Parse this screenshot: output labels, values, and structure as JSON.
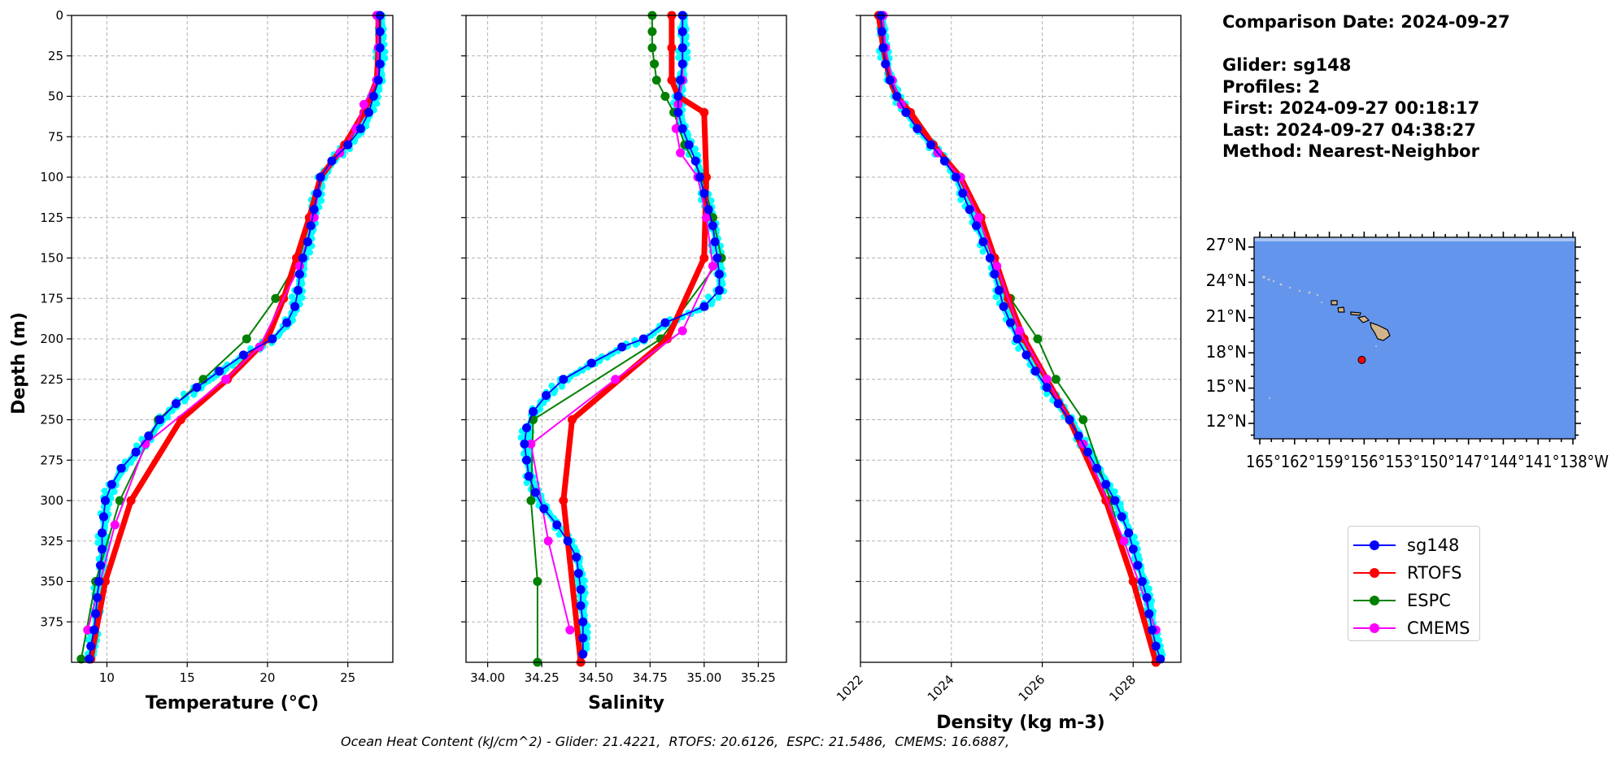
{
  "chart_data": [
    {
      "type": "line",
      "xlabel": "Temperature (°C)",
      "ylabel": "Depth (m)",
      "xlim": [
        7.8,
        27.8
      ],
      "ylim": [
        400,
        0
      ],
      "xticks": [
        "10",
        "15",
        "20",
        "25"
      ],
      "yticks": [
        "0",
        "25",
        "50",
        "75",
        "100",
        "125",
        "150",
        "175",
        "200",
        "225",
        "250",
        "275",
        "300",
        "325",
        "350",
        "375"
      ],
      "grid": true,
      "series": [
        {
          "name": "sg148",
          "depth": [
            0,
            10,
            20,
            30,
            40,
            50,
            60,
            70,
            80,
            90,
            100,
            110,
            120,
            130,
            140,
            150,
            160,
            170,
            180,
            190,
            200,
            210,
            220,
            230,
            240,
            250,
            260,
            270,
            280,
            290,
            300,
            310,
            320,
            330,
            340,
            350,
            360,
            370,
            380,
            390,
            398
          ],
          "values": [
            27.0,
            27.0,
            27.0,
            27.0,
            26.9,
            26.6,
            26.3,
            25.8,
            25.0,
            24.0,
            23.3,
            23.1,
            22.9,
            22.7,
            22.5,
            22.2,
            22.0,
            21.9,
            21.7,
            21.2,
            20.3,
            18.5,
            17.0,
            15.6,
            14.3,
            13.3,
            12.6,
            11.8,
            10.9,
            10.3,
            9.9,
            9.8,
            9.7,
            9.7,
            9.6,
            9.5,
            9.4,
            9.3,
            9.2,
            9.0,
            8.9
          ]
        },
        {
          "name": "RTOFS",
          "depth": [
            0,
            20,
            40,
            60,
            80,
            100,
            125,
            150,
            175,
            200,
            225,
            250,
            300,
            350,
            398
          ],
          "values": [
            26.9,
            26.9,
            26.8,
            26.0,
            24.8,
            23.3,
            22.6,
            21.8,
            21.0,
            20.0,
            17.5,
            14.6,
            11.5,
            9.9,
            9.0
          ]
        },
        {
          "name": "ESPC",
          "depth": [
            0,
            20,
            40,
            60,
            80,
            100,
            125,
            150,
            175,
            200,
            225,
            250,
            300,
            350,
            398
          ],
          "values": [
            26.8,
            26.9,
            26.8,
            26.1,
            24.9,
            23.3,
            22.7,
            22.0,
            20.5,
            18.7,
            16.0,
            13.2,
            10.8,
            9.3,
            8.4
          ]
        },
        {
          "name": "CMEMS",
          "depth": [
            0,
            20,
            40,
            55,
            70,
            85,
            100,
            125,
            155,
            205,
            225,
            265,
            315,
            380
          ],
          "values": [
            26.8,
            26.9,
            26.8,
            26.0,
            25.5,
            24.5,
            23.3,
            22.9,
            22.0,
            19.5,
            17.4,
            12.4,
            10.5,
            8.8
          ]
        }
      ]
    },
    {
      "type": "line",
      "xlabel": "Salinity",
      "xlim": [
        33.9,
        35.38
      ],
      "ylim": [
        400,
        0
      ],
      "xticks": [
        "34.00",
        "34.25",
        "34.50",
        "34.75",
        "35.00",
        "35.25"
      ],
      "grid": true,
      "series": [
        {
          "name": "sg148",
          "depth": [
            0,
            10,
            20,
            30,
            40,
            50,
            60,
            70,
            80,
            90,
            100,
            110,
            120,
            130,
            140,
            150,
            160,
            170,
            180,
            190,
            200,
            205,
            215,
            225,
            235,
            245,
            255,
            265,
            275,
            285,
            295,
            305,
            315,
            325,
            335,
            345,
            355,
            365,
            375,
            385,
            395
          ],
          "values": [
            34.9,
            34.9,
            34.9,
            34.9,
            34.89,
            34.88,
            34.88,
            34.9,
            34.93,
            34.96,
            34.98,
            35.0,
            35.02,
            35.04,
            35.05,
            35.06,
            35.07,
            35.07,
            35.0,
            34.82,
            34.72,
            34.62,
            34.48,
            34.35,
            34.27,
            34.21,
            34.18,
            34.17,
            34.18,
            34.19,
            34.22,
            34.26,
            34.32,
            34.37,
            34.41,
            34.42,
            34.43,
            34.43,
            34.44,
            34.44,
            34.44
          ]
        },
        {
          "name": "RTOFS",
          "depth": [
            0,
            20,
            40,
            50,
            60,
            100,
            150,
            200,
            250,
            300,
            400
          ],
          "values": [
            34.85,
            34.85,
            34.85,
            34.88,
            35.0,
            35.01,
            35.0,
            34.83,
            34.39,
            34.35,
            34.43
          ]
        },
        {
          "name": "ESPC",
          "depth": [
            0,
            10,
            20,
            30,
            40,
            50,
            60,
            80,
            100,
            125,
            150,
            200,
            250,
            300,
            350,
            400
          ],
          "values": [
            34.76,
            34.76,
            34.76,
            34.77,
            34.78,
            34.82,
            34.86,
            34.91,
            34.99,
            35.04,
            35.08,
            34.8,
            34.21,
            34.2,
            34.23,
            34.23
          ]
        },
        {
          "name": "CMEMS",
          "depth": [
            0,
            20,
            40,
            55,
            70,
            85,
            100,
            125,
            155,
            195,
            225,
            265,
            325,
            380
          ],
          "values": [
            34.9,
            34.9,
            34.9,
            34.88,
            34.87,
            34.89,
            34.97,
            35.01,
            35.04,
            34.9,
            34.59,
            34.2,
            34.28,
            34.38
          ]
        }
      ]
    },
    {
      "type": "line",
      "xlabel": "Density (kg m-3)",
      "xlim": [
        1022.0,
        1029.05
      ],
      "ylim": [
        400,
        0
      ],
      "xticks": [
        "1022",
        "1024",
        "1026",
        "1028"
      ],
      "grid": true,
      "series": [
        {
          "name": "sg148",
          "depth": [
            0,
            10,
            20,
            30,
            40,
            50,
            60,
            70,
            80,
            90,
            100,
            110,
            120,
            130,
            140,
            150,
            160,
            170,
            180,
            190,
            200,
            210,
            220,
            230,
            240,
            250,
            260,
            270,
            280,
            290,
            300,
            310,
            320,
            330,
            340,
            350,
            360,
            370,
            380,
            390,
            398
          ],
          "values": [
            1022.45,
            1022.47,
            1022.5,
            1022.55,
            1022.65,
            1022.8,
            1023.0,
            1023.25,
            1023.55,
            1023.85,
            1024.1,
            1024.25,
            1024.4,
            1024.55,
            1024.7,
            1024.85,
            1024.95,
            1025.05,
            1025.15,
            1025.3,
            1025.45,
            1025.65,
            1025.85,
            1026.1,
            1026.35,
            1026.6,
            1026.8,
            1027.0,
            1027.2,
            1027.4,
            1027.6,
            1027.75,
            1027.9,
            1028.0,
            1028.1,
            1028.2,
            1028.3,
            1028.35,
            1028.42,
            1028.5,
            1028.6
          ]
        },
        {
          "name": "RTOFS",
          "depth": [
            0,
            20,
            40,
            50,
            60,
            80,
            100,
            125,
            150,
            175,
            200,
            225,
            250,
            300,
            350,
            400
          ],
          "values": [
            1022.4,
            1022.5,
            1022.65,
            1022.8,
            1023.1,
            1023.6,
            1024.2,
            1024.65,
            1024.95,
            1025.25,
            1025.6,
            1026.1,
            1026.6,
            1027.4,
            1028.0,
            1028.5
          ]
        },
        {
          "name": "ESPC",
          "depth": [
            0,
            20,
            40,
            60,
            80,
            100,
            125,
            150,
            175,
            200,
            225,
            250,
            300,
            350,
            400
          ],
          "values": [
            1022.4,
            1022.5,
            1022.65,
            1023.0,
            1023.6,
            1024.2,
            1024.65,
            1024.95,
            1025.3,
            1025.9,
            1026.3,
            1026.9,
            1027.5,
            1028.0,
            1028.5
          ]
        },
        {
          "name": "CMEMS",
          "depth": [
            0,
            20,
            40,
            55,
            70,
            85,
            100,
            125,
            155,
            195,
            225,
            265,
            325,
            380
          ],
          "values": [
            1022.5,
            1022.55,
            1022.7,
            1022.9,
            1023.25,
            1023.7,
            1024.2,
            1024.6,
            1025.0,
            1025.5,
            1026.1,
            1026.9,
            1027.8,
            1028.5
          ]
        }
      ]
    }
  ],
  "colors": {
    "sg148": "#0000ff",
    "sg148_raw": "#00ffff",
    "RTOFS": "#ff0000",
    "ESPC": "#008000",
    "CMEMS": "#ff00ff",
    "ocean": "#6495ed",
    "land": "#d2b48c"
  },
  "info": {
    "comparison_date": "Comparison Date: 2024-09-27",
    "glider": "Glider: sg148",
    "profiles": "Profiles: 2",
    "first": "First: 2024-09-27 00:18:17",
    "last": "Last: 2024-09-27 04:38:27",
    "method": "Method: Nearest-Neighbor"
  },
  "map": {
    "lat_labels": [
      "27°N",
      "24°N",
      "21°N",
      "18°N",
      "15°N",
      "12°N"
    ],
    "lon_labels_text": "165°162°159°156°153°150°147°144°141°138°W",
    "marker": {
      "lat": 17.4,
      "lon": -156.2
    }
  },
  "legend": [
    "sg148",
    "RTOFS",
    "ESPC",
    "CMEMS"
  ],
  "caption": "Ocean Heat Content (kJ/cm^2) - Glider: 21.4221,  RTOFS: 20.6126,  ESPC: 21.5486,  CMEMS: 16.6887,"
}
